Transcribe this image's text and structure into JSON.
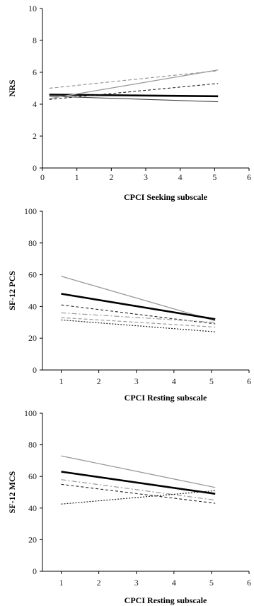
{
  "chart_data": [
    {
      "type": "line",
      "xlabel": "CPCI Seeking subscale",
      "ylabel": "NRS",
      "xlim": [
        0,
        6
      ],
      "ylim": [
        0,
        10
      ],
      "x_ticks": [
        "0",
        "1",
        "2",
        "3",
        "4",
        "5",
        "6"
      ],
      "y_ticks": [
        "0",
        "2",
        "4",
        "6",
        "8",
        "10"
      ],
      "grid": false,
      "series": [
        {
          "style": "solid-bold",
          "x": [
            0.2,
            5.1
          ],
          "y": [
            4.6,
            4.5
          ]
        },
        {
          "style": "solid-dark",
          "x": [
            0.2,
            5.1
          ],
          "y": [
            4.5,
            4.15
          ]
        },
        {
          "style": "solid-gray",
          "x": [
            0.2,
            5.1
          ],
          "y": [
            4.35,
            6.15
          ]
        },
        {
          "style": "dashed-black",
          "x": [
            0.2,
            5.1
          ],
          "y": [
            4.3,
            5.3
          ]
        },
        {
          "style": "dashed-gray",
          "x": [
            0.2,
            5.1
          ],
          "y": [
            5.0,
            6.1
          ]
        }
      ]
    },
    {
      "type": "line",
      "xlabel": "CPCI Resting subscale",
      "ylabel": "SF-12 PCS",
      "xlim": [
        0.5,
        6
      ],
      "ylim": [
        0,
        100
      ],
      "x_ticks": [
        "1",
        "2",
        "3",
        "4",
        "5",
        "6"
      ],
      "y_ticks": [
        "0",
        "20",
        "40",
        "60",
        "80",
        "100"
      ],
      "grid": false,
      "series": [
        {
          "style": "solid-gray",
          "x": [
            1,
            5.1
          ],
          "y": [
            59,
            31
          ]
        },
        {
          "style": "solid-bold",
          "x": [
            1,
            5.1
          ],
          "y": [
            48,
            32
          ]
        },
        {
          "style": "dashed-black",
          "x": [
            1,
            5.1
          ],
          "y": [
            41,
            29
          ]
        },
        {
          "style": "dashdot-gray",
          "x": [
            1,
            5.1
          ],
          "y": [
            36,
            30
          ]
        },
        {
          "style": "dashed-gray",
          "x": [
            1,
            5.1
          ],
          "y": [
            33,
            27
          ]
        },
        {
          "style": "dotted-black",
          "x": [
            1,
            5.1
          ],
          "y": [
            31.5,
            24
          ]
        }
      ]
    },
    {
      "type": "line",
      "xlabel": "CPCI Resting subscale",
      "ylabel": "SF-12 MCS",
      "xlim": [
        0.5,
        6
      ],
      "ylim": [
        0,
        100
      ],
      "x_ticks": [
        "1",
        "2",
        "3",
        "4",
        "5",
        "6"
      ],
      "y_ticks": [
        "0",
        "20",
        "40",
        "60",
        "80",
        "100"
      ],
      "grid": false,
      "series": [
        {
          "style": "solid-gray",
          "x": [
            1,
            5.1
          ],
          "y": [
            73,
            53
          ]
        },
        {
          "style": "solid-bold",
          "x": [
            1,
            5.1
          ],
          "y": [
            63,
            49
          ]
        },
        {
          "style": "dashdot-gray",
          "x": [
            1,
            5.1
          ],
          "y": [
            58,
            45
          ]
        },
        {
          "style": "dashed-black",
          "x": [
            1,
            5.1
          ],
          "y": [
            55,
            43
          ]
        },
        {
          "style": "dotted-black",
          "x": [
            1,
            5.1
          ],
          "y": [
            42.5,
            51
          ]
        }
      ]
    }
  ]
}
